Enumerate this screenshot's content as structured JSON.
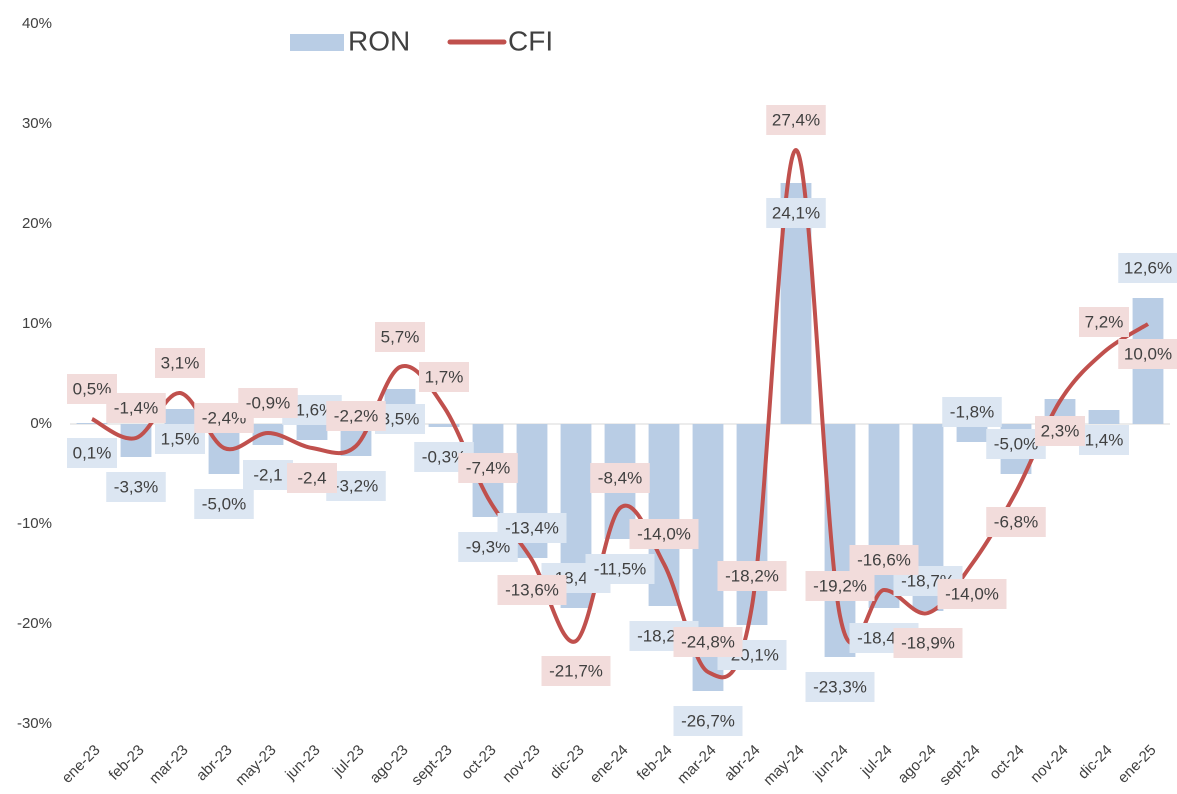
{
  "chart_data": {
    "type": "bar_line",
    "categories": [
      "ene-23",
      "feb-23",
      "mar-23",
      "abr-23",
      "may-23",
      "jun-23",
      "jul-23",
      "ago-23",
      "sept-23",
      "oct-23",
      "nov-23",
      "dic-23",
      "ene-24",
      "feb-24",
      "mar-24",
      "abr-24",
      "may-24",
      "jun-24",
      "jul-24",
      "ago-24",
      "sept-24",
      "oct-24",
      "nov-24",
      "dic-24",
      "ene-25"
    ],
    "series": [
      {
        "name": "RON",
        "type": "bar",
        "color": "#b9cde5",
        "label_color": "#dce6f2",
        "values": [
          0.1,
          -3.3,
          1.5,
          -5.0,
          -2.1,
          -1.6,
          -3.2,
          3.5,
          -0.3,
          -9.3,
          -13.4,
          -18.4,
          -11.5,
          -18.2,
          -26.7,
          -20.1,
          24.1,
          -23.3,
          -18.4,
          -18.7,
          -1.8,
          -5.0,
          2.5,
          1.4,
          12.6
        ],
        "value_labels": [
          "0,1%",
          "-3,3%",
          "1,5%",
          "-5,0%",
          "-2,1",
          "-1,6%",
          "-3,2%",
          "3,5%",
          "-0,3%",
          "-9,3%",
          "-13,4%",
          "-18,4%",
          "-11,5%",
          "-18,2%",
          "-26,7%",
          "-20,1%",
          "24,1%",
          "-23,3%",
          "-18,4%",
          "-18,7%",
          "-1,8%",
          "-5,0%",
          null,
          "1,4%",
          "12,6%"
        ]
      },
      {
        "name": "CFI",
        "type": "line",
        "color": "#c0504d",
        "label_color": "#f2dcdb",
        "values": [
          0.5,
          -1.4,
          3.1,
          -2.4,
          -0.9,
          -2.4,
          -2.2,
          5.7,
          1.7,
          -7.4,
          -13.6,
          -21.7,
          -8.4,
          -14.0,
          -24.8,
          -18.2,
          27.4,
          -19.2,
          -16.6,
          -18.9,
          -14.0,
          -6.8,
          2.3,
          7.2,
          10.0
        ],
        "value_labels": [
          "0,5%",
          "-1,4%",
          "3,1%",
          "-2,4%",
          "-0,9%",
          "-2,4",
          "-2,2%",
          "5,7%",
          "1,7%",
          "-7,4%",
          "-13,6%",
          "-21,7%",
          "-8,4%",
          "-14,0%",
          "-24,8%",
          "-18,2%",
          "27,4%",
          "-19,2%",
          "-16,6%",
          "-18,9%",
          "-14,0%",
          "-6,8%",
          "2,3%",
          "7,2%",
          "10,0%"
        ]
      }
    ],
    "ylim": [
      -30,
      40
    ],
    "yticks": [
      {
        "value": -30,
        "label": "-30%"
      },
      {
        "value": -20,
        "label": "-20%"
      },
      {
        "value": -10,
        "label": "-10%"
      },
      {
        "value": 0,
        "label": "0%"
      },
      {
        "value": 10,
        "label": "10%"
      },
      {
        "value": 20,
        "label": "20%"
      },
      {
        "value": 30,
        "label": "30%"
      },
      {
        "value": 40,
        "label": "40%"
      }
    ],
    "grid": false,
    "legend": "top"
  }
}
